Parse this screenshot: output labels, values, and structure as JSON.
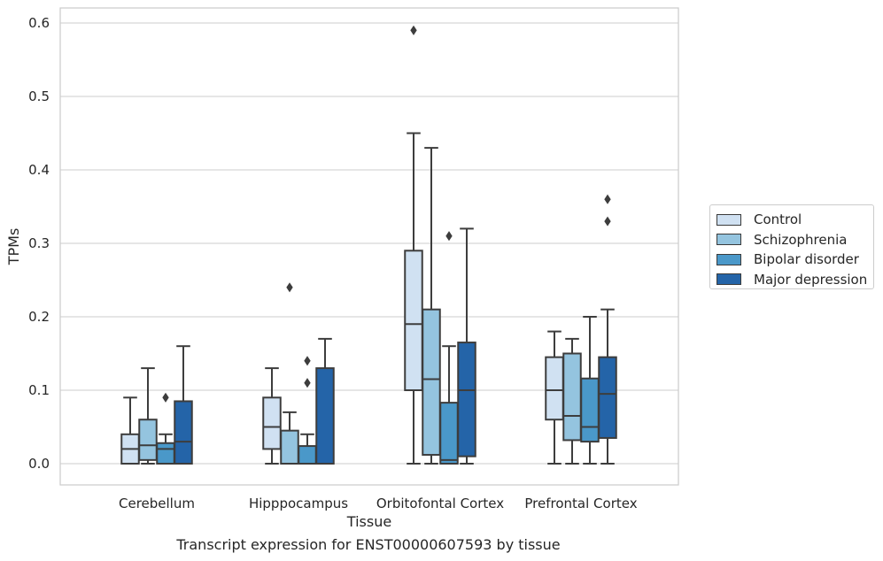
{
  "chart_data": {
    "type": "box",
    "title": "",
    "caption": "Transcript expression for ENST00000607593 by tissue",
    "xlabel": "Tissue",
    "ylabel": "TPMs",
    "ylim": [
      -0.028,
      0.62
    ],
    "yticks": [
      "0.0",
      "0.1",
      "0.2",
      "0.3",
      "0.4",
      "0.5",
      "0.6"
    ],
    "grid": true,
    "legend_position": "right",
    "categories": [
      "Cerebellum",
      "Hipppocampus",
      "Orbitofontal Cortex",
      "Prefrontal Cortex"
    ],
    "series": [
      {
        "name": "Control",
        "color": "#d0e1f2",
        "boxes": [
          {
            "min": 0.0,
            "q1": 0.0,
            "median": 0.02,
            "q3": 0.04,
            "max": 0.09,
            "outliers": []
          },
          {
            "min": 0.0,
            "q1": 0.02,
            "median": 0.05,
            "q3": 0.09,
            "max": 0.13,
            "outliers": []
          },
          {
            "min": 0.0,
            "q1": 0.1,
            "median": 0.19,
            "q3": 0.29,
            "max": 0.45,
            "outliers": [
              0.59
            ]
          },
          {
            "min": 0.0,
            "q1": 0.06,
            "median": 0.1,
            "q3": 0.145,
            "max": 0.18,
            "outliers": []
          }
        ]
      },
      {
        "name": "Schizophrenia",
        "color": "#94c4df",
        "boxes": [
          {
            "min": 0.0,
            "q1": 0.005,
            "median": 0.025,
            "q3": 0.06,
            "max": 0.13,
            "outliers": []
          },
          {
            "min": 0.0,
            "q1": 0.0,
            "median": 0.0,
            "q3": 0.045,
            "max": 0.07,
            "outliers": [
              0.24
            ]
          },
          {
            "min": 0.0,
            "q1": 0.012,
            "median": 0.115,
            "q3": 0.21,
            "max": 0.43,
            "outliers": []
          },
          {
            "min": 0.0,
            "q1": 0.032,
            "median": 0.065,
            "q3": 0.15,
            "max": 0.17,
            "outliers": []
          }
        ]
      },
      {
        "name": "Bipolar disorder",
        "color": "#4a98c9",
        "boxes": [
          {
            "min": 0.0,
            "q1": 0.0,
            "median": 0.02,
            "q3": 0.028,
            "max": 0.04,
            "outliers": [
              0.09
            ]
          },
          {
            "min": 0.0,
            "q1": 0.0,
            "median": 0.0,
            "q3": 0.024,
            "max": 0.04,
            "outliers": [
              0.11,
              0.14
            ]
          },
          {
            "min": 0.0,
            "q1": 0.0,
            "median": 0.005,
            "q3": 0.083,
            "max": 0.16,
            "outliers": [
              0.31
            ]
          },
          {
            "min": 0.0,
            "q1": 0.03,
            "median": 0.05,
            "q3": 0.116,
            "max": 0.2,
            "outliers": []
          }
        ]
      },
      {
        "name": "Major depression",
        "color": "#2464a8",
        "boxes": [
          {
            "min": 0.0,
            "q1": 0.0,
            "median": 0.03,
            "q3": 0.085,
            "max": 0.16,
            "outliers": []
          },
          {
            "min": 0.0,
            "q1": 0.0,
            "median": 0.0,
            "q3": 0.13,
            "max": 0.17,
            "outliers": []
          },
          {
            "min": 0.0,
            "q1": 0.01,
            "median": 0.1,
            "q3": 0.165,
            "max": 0.32,
            "outliers": []
          },
          {
            "min": 0.0,
            "q1": 0.035,
            "median": 0.095,
            "q3": 0.145,
            "max": 0.21,
            "outliers": [
              0.33,
              0.36
            ]
          }
        ]
      }
    ]
  }
}
